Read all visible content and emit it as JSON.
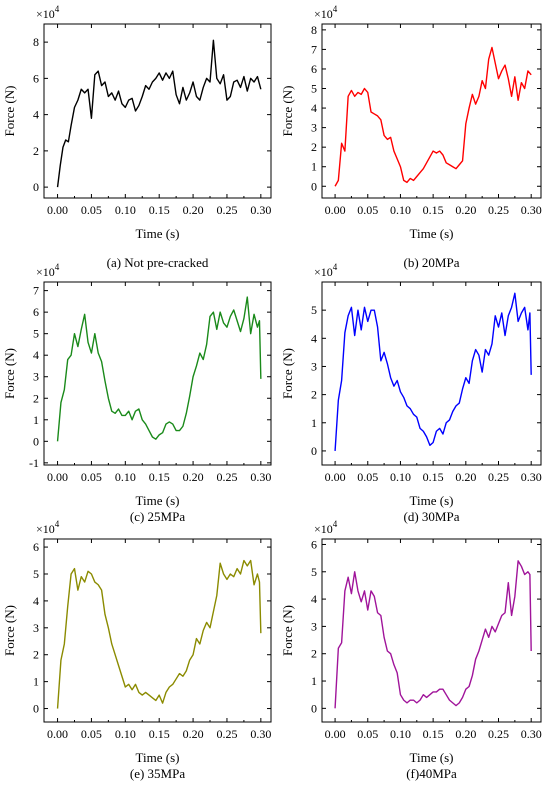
{
  "chart_data": [
    {
      "type": "line",
      "caption": "(a) Not pre-cracked",
      "xlabel": "Time (s)",
      "ylabel": "Force (N)",
      "multiplier": "×10",
      "multiplier_exp": "4",
      "xlim": [
        -0.02,
        0.315
      ],
      "ylim": [
        -0.6,
        9.0
      ],
      "xticks": [
        0.0,
        0.05,
        0.1,
        0.15,
        0.2,
        0.25,
        0.3
      ],
      "xtick_labels": [
        "0.00",
        "0.05",
        "0.10",
        "0.15",
        "0.20",
        "0.25",
        "0.30"
      ],
      "yticks": [
        0,
        2,
        4,
        6,
        8
      ],
      "ytick_labels": [
        "0",
        "2",
        "4",
        "6",
        "8"
      ],
      "series": [
        {
          "color": "#000000",
          "x": [
            0.0,
            0.004,
            0.008,
            0.012,
            0.016,
            0.02,
            0.025,
            0.03,
            0.035,
            0.04,
            0.045,
            0.05,
            0.055,
            0.06,
            0.065,
            0.07,
            0.075,
            0.08,
            0.085,
            0.09,
            0.095,
            0.1,
            0.105,
            0.11,
            0.115,
            0.12,
            0.125,
            0.13,
            0.135,
            0.14,
            0.145,
            0.15,
            0.155,
            0.16,
            0.165,
            0.17,
            0.175,
            0.18,
            0.185,
            0.19,
            0.195,
            0.2,
            0.205,
            0.21,
            0.215,
            0.22,
            0.225,
            0.23,
            0.235,
            0.24,
            0.245,
            0.25,
            0.255,
            0.26,
            0.265,
            0.27,
            0.275,
            0.28,
            0.285,
            0.29,
            0.295,
            0.3
          ],
          "y": [
            0.0,
            1.2,
            2.2,
            2.6,
            2.5,
            3.4,
            4.4,
            4.8,
            5.4,
            5.2,
            5.4,
            3.8,
            6.2,
            6.4,
            5.6,
            5.8,
            5.0,
            5.2,
            4.8,
            5.3,
            4.6,
            4.4,
            4.8,
            4.9,
            4.2,
            4.5,
            5.0,
            5.6,
            5.4,
            5.8,
            6.0,
            6.3,
            5.9,
            6.3,
            6.0,
            6.4,
            5.1,
            4.6,
            5.5,
            4.8,
            5.2,
            5.8,
            5.0,
            4.8,
            5.5,
            6.0,
            5.8,
            8.1,
            6.0,
            5.7,
            6.2,
            4.8,
            5.0,
            5.8,
            5.9,
            5.5,
            6.1,
            5.3,
            6.0,
            5.8,
            6.1,
            5.4
          ]
        }
      ]
    },
    {
      "type": "line",
      "caption": "(b) 20MPa",
      "xlabel": "Time (s)",
      "ylabel": "Force (N)",
      "multiplier": "×10",
      "multiplier_exp": "4",
      "xlim": [
        -0.02,
        0.315
      ],
      "ylim": [
        -0.6,
        8.3
      ],
      "xticks": [
        0.0,
        0.05,
        0.1,
        0.15,
        0.2,
        0.25,
        0.3
      ],
      "xtick_labels": [
        "0.00",
        "0.05",
        "0.10",
        "0.15",
        "0.20",
        "0.25",
        "0.30"
      ],
      "yticks": [
        0,
        1,
        2,
        3,
        4,
        5,
        6,
        7,
        8
      ],
      "ytick_labels": [
        "0",
        "1",
        "2",
        "3",
        "4",
        "5",
        "6",
        "7",
        "8"
      ],
      "series": [
        {
          "color": "#ff0000",
          "x": [
            0.0,
            0.005,
            0.01,
            0.015,
            0.02,
            0.025,
            0.03,
            0.035,
            0.04,
            0.045,
            0.05,
            0.055,
            0.06,
            0.065,
            0.07,
            0.075,
            0.08,
            0.085,
            0.09,
            0.095,
            0.1,
            0.105,
            0.11,
            0.115,
            0.12,
            0.125,
            0.13,
            0.135,
            0.14,
            0.145,
            0.15,
            0.155,
            0.16,
            0.165,
            0.17,
            0.175,
            0.18,
            0.185,
            0.19,
            0.195,
            0.2,
            0.205,
            0.21,
            0.215,
            0.22,
            0.225,
            0.23,
            0.235,
            0.24,
            0.245,
            0.25,
            0.255,
            0.26,
            0.265,
            0.27,
            0.275,
            0.28,
            0.285,
            0.29,
            0.295,
            0.3
          ],
          "y": [
            0.0,
            0.3,
            2.2,
            1.8,
            4.6,
            4.9,
            4.6,
            4.8,
            4.7,
            5.0,
            4.8,
            3.8,
            3.7,
            3.6,
            3.4,
            2.6,
            2.4,
            2.5,
            1.8,
            1.4,
            1.0,
            0.3,
            0.2,
            0.4,
            0.3,
            0.5,
            0.7,
            0.9,
            1.2,
            1.5,
            1.8,
            1.7,
            1.8,
            1.6,
            1.2,
            1.1,
            1.0,
            0.9,
            1.1,
            1.3,
            3.2,
            4.0,
            4.7,
            4.2,
            4.6,
            5.4,
            5.0,
            6.5,
            7.1,
            6.3,
            5.5,
            5.9,
            6.2,
            5.5,
            4.6,
            5.6,
            4.4,
            5.3,
            5.0,
            5.9,
            5.7
          ]
        }
      ]
    },
    {
      "type": "line",
      "caption": "(c) 25MPa",
      "xlabel": "Time (s)",
      "ylabel": "Force (N)",
      "multiplier": "×10",
      "multiplier_exp": "4",
      "xlim": [
        -0.02,
        0.315
      ],
      "ylim": [
        -1.1,
        7.4
      ],
      "xticks": [
        0.0,
        0.05,
        0.1,
        0.15,
        0.2,
        0.25,
        0.3
      ],
      "xtick_labels": [
        "0.00",
        "0.05",
        "0.10",
        "0.15",
        "0.20",
        "0.25",
        "0.30"
      ],
      "yticks": [
        -1,
        0,
        1,
        2,
        3,
        4,
        5,
        6,
        7
      ],
      "ytick_labels": [
        "-1",
        "0",
        "1",
        "2",
        "3",
        "4",
        "5",
        "6",
        "7"
      ],
      "series": [
        {
          "color": "#1a8a1a",
          "x": [
            0.0,
            0.005,
            0.01,
            0.015,
            0.02,
            0.025,
            0.03,
            0.035,
            0.04,
            0.045,
            0.05,
            0.055,
            0.06,
            0.065,
            0.07,
            0.075,
            0.08,
            0.085,
            0.09,
            0.095,
            0.1,
            0.105,
            0.11,
            0.115,
            0.12,
            0.125,
            0.13,
            0.135,
            0.14,
            0.145,
            0.15,
            0.155,
            0.16,
            0.165,
            0.17,
            0.175,
            0.18,
            0.185,
            0.19,
            0.195,
            0.2,
            0.205,
            0.21,
            0.215,
            0.22,
            0.225,
            0.23,
            0.235,
            0.24,
            0.245,
            0.25,
            0.255,
            0.26,
            0.265,
            0.27,
            0.275,
            0.28,
            0.285,
            0.29,
            0.295,
            0.298,
            0.3
          ],
          "y": [
            0.0,
            1.8,
            2.4,
            3.8,
            4.0,
            5.0,
            4.4,
            5.2,
            5.9,
            4.6,
            4.1,
            5.0,
            4.1,
            3.7,
            2.8,
            2.0,
            1.4,
            1.3,
            1.5,
            1.2,
            1.2,
            1.4,
            1.0,
            1.4,
            1.5,
            1.0,
            0.8,
            0.5,
            0.2,
            0.1,
            0.3,
            0.4,
            0.8,
            0.9,
            0.8,
            0.5,
            0.5,
            0.7,
            1.3,
            2.1,
            3.0,
            3.5,
            4.1,
            3.8,
            4.5,
            5.8,
            6.0,
            5.2,
            6.0,
            5.5,
            5.3,
            5.8,
            6.1,
            5.6,
            5.1,
            5.7,
            6.7,
            5.0,
            5.9,
            5.3,
            5.6,
            2.9
          ]
        }
      ]
    },
    {
      "type": "line",
      "caption": "(d) 30MPa",
      "xlabel": "Time (s)",
      "ylabel": "Force (N)",
      "multiplier": "×10",
      "multiplier_exp": "4",
      "xlim": [
        -0.02,
        0.315
      ],
      "ylim": [
        -0.5,
        6.0
      ],
      "xticks": [
        0.0,
        0.05,
        0.1,
        0.15,
        0.2,
        0.25,
        0.3
      ],
      "xtick_labels": [
        "0.00",
        "0.05",
        "0.10",
        "0.15",
        "0.20",
        "0.25",
        "0.30"
      ],
      "yticks": [
        0,
        1,
        2,
        3,
        4,
        5
      ],
      "ytick_labels": [
        "0",
        "1",
        "2",
        "3",
        "4",
        "5"
      ],
      "series": [
        {
          "color": "#0000ff",
          "x": [
            0.0,
            0.005,
            0.01,
            0.015,
            0.02,
            0.025,
            0.03,
            0.035,
            0.04,
            0.045,
            0.05,
            0.055,
            0.06,
            0.065,
            0.07,
            0.075,
            0.08,
            0.085,
            0.09,
            0.095,
            0.1,
            0.105,
            0.11,
            0.115,
            0.12,
            0.125,
            0.13,
            0.135,
            0.14,
            0.145,
            0.15,
            0.155,
            0.16,
            0.165,
            0.17,
            0.175,
            0.18,
            0.185,
            0.19,
            0.195,
            0.2,
            0.205,
            0.21,
            0.215,
            0.22,
            0.225,
            0.23,
            0.235,
            0.24,
            0.245,
            0.25,
            0.255,
            0.26,
            0.265,
            0.27,
            0.275,
            0.28,
            0.285,
            0.29,
            0.295,
            0.298,
            0.3
          ],
          "y": [
            0.0,
            1.8,
            2.5,
            4.2,
            4.8,
            5.1,
            4.1,
            5.0,
            4.3,
            5.1,
            4.6,
            5.0,
            5.0,
            4.4,
            3.2,
            3.5,
            3.1,
            2.6,
            2.3,
            2.5,
            2.1,
            1.9,
            1.6,
            1.5,
            1.3,
            1.2,
            0.8,
            0.7,
            0.5,
            0.2,
            0.3,
            0.7,
            0.8,
            0.6,
            1.0,
            1.1,
            1.4,
            1.6,
            1.7,
            2.2,
            2.6,
            2.4,
            3.2,
            3.6,
            3.4,
            2.8,
            3.6,
            3.4,
            3.8,
            4.8,
            4.4,
            4.9,
            4.1,
            4.8,
            5.1,
            5.6,
            4.6,
            4.9,
            5.1,
            4.3,
            4.9,
            2.7
          ]
        }
      ]
    },
    {
      "type": "line",
      "caption": "(e) 35MPa",
      "xlabel": "Time (s)",
      "ylabel": "Force (N)",
      "multiplier": "×10",
      "multiplier_exp": "4",
      "xlim": [
        -0.02,
        0.315
      ],
      "ylim": [
        -0.5,
        6.3
      ],
      "xticks": [
        0.0,
        0.05,
        0.1,
        0.15,
        0.2,
        0.25,
        0.3
      ],
      "xtick_labels": [
        "0.00",
        "0.05",
        "0.10",
        "0.15",
        "0.20",
        "0.25",
        "0.30"
      ],
      "yticks": [
        0,
        1,
        2,
        3,
        4,
        5,
        6
      ],
      "ytick_labels": [
        "0",
        "1",
        "2",
        "3",
        "4",
        "5",
        "6"
      ],
      "series": [
        {
          "color": "#8b8b00",
          "x": [
            0.0,
            0.005,
            0.01,
            0.015,
            0.02,
            0.025,
            0.03,
            0.035,
            0.04,
            0.045,
            0.05,
            0.055,
            0.06,
            0.065,
            0.07,
            0.075,
            0.08,
            0.085,
            0.09,
            0.095,
            0.1,
            0.105,
            0.11,
            0.115,
            0.12,
            0.125,
            0.13,
            0.135,
            0.14,
            0.145,
            0.15,
            0.155,
            0.16,
            0.165,
            0.17,
            0.175,
            0.18,
            0.185,
            0.19,
            0.195,
            0.2,
            0.205,
            0.21,
            0.215,
            0.22,
            0.225,
            0.23,
            0.235,
            0.24,
            0.245,
            0.25,
            0.255,
            0.26,
            0.265,
            0.27,
            0.275,
            0.28,
            0.285,
            0.29,
            0.295,
            0.298,
            0.3
          ],
          "y": [
            0.0,
            1.8,
            2.4,
            3.8,
            5.0,
            5.2,
            4.4,
            4.9,
            4.7,
            5.1,
            5.0,
            4.7,
            4.6,
            4.4,
            3.5,
            3.0,
            2.4,
            2.0,
            1.6,
            1.2,
            0.8,
            0.9,
            0.7,
            0.9,
            0.6,
            0.5,
            0.6,
            0.5,
            0.4,
            0.3,
            0.5,
            0.2,
            0.6,
            0.8,
            0.9,
            1.1,
            1.3,
            1.2,
            1.4,
            1.8,
            2.0,
            2.6,
            2.4,
            2.9,
            3.2,
            3.0,
            3.6,
            4.2,
            5.4,
            5.0,
            4.8,
            5.0,
            4.9,
            5.2,
            5.0,
            5.5,
            5.3,
            5.5,
            4.6,
            5.0,
            4.7,
            2.8
          ]
        }
      ]
    },
    {
      "type": "line",
      "caption": "(f)40MPa",
      "xlabel": "Time (s)",
      "ylabel": "Force (N)",
      "multiplier": "×10",
      "multiplier_exp": "4",
      "xlim": [
        -0.02,
        0.315
      ],
      "ylim": [
        -0.5,
        6.2
      ],
      "xticks": [
        0.0,
        0.05,
        0.1,
        0.15,
        0.2,
        0.25,
        0.3
      ],
      "xtick_labels": [
        "0.00",
        "0.05",
        "0.10",
        "0.15",
        "0.20",
        "0.25",
        "0.30"
      ],
      "yticks": [
        0,
        1,
        2,
        3,
        4,
        5,
        6
      ],
      "ytick_labels": [
        "0",
        "1",
        "2",
        "3",
        "4",
        "5",
        "6"
      ],
      "series": [
        {
          "color": "#a0149a",
          "x": [
            0.0,
            0.005,
            0.01,
            0.015,
            0.02,
            0.025,
            0.03,
            0.035,
            0.04,
            0.045,
            0.05,
            0.055,
            0.06,
            0.065,
            0.07,
            0.075,
            0.08,
            0.085,
            0.09,
            0.095,
            0.1,
            0.105,
            0.11,
            0.115,
            0.12,
            0.125,
            0.13,
            0.135,
            0.14,
            0.145,
            0.15,
            0.155,
            0.16,
            0.165,
            0.17,
            0.175,
            0.18,
            0.185,
            0.19,
            0.195,
            0.2,
            0.205,
            0.21,
            0.215,
            0.22,
            0.225,
            0.23,
            0.235,
            0.24,
            0.245,
            0.25,
            0.255,
            0.26,
            0.265,
            0.27,
            0.275,
            0.28,
            0.285,
            0.29,
            0.295,
            0.298,
            0.3
          ],
          "y": [
            0.0,
            2.2,
            2.4,
            4.3,
            4.8,
            4.2,
            5.0,
            4.3,
            3.9,
            4.3,
            3.6,
            4.3,
            4.1,
            3.5,
            3.4,
            2.6,
            2.1,
            2.0,
            1.6,
            1.3,
            0.5,
            0.3,
            0.2,
            0.3,
            0.3,
            0.2,
            0.3,
            0.5,
            0.4,
            0.5,
            0.6,
            0.6,
            0.7,
            0.7,
            0.5,
            0.3,
            0.2,
            0.1,
            0.2,
            0.4,
            0.7,
            0.8,
            1.2,
            1.8,
            2.1,
            2.5,
            2.9,
            2.6,
            3.0,
            2.8,
            3.1,
            3.4,
            3.5,
            4.6,
            3.4,
            4.1,
            5.4,
            5.2,
            4.9,
            5.0,
            4.9,
            2.1
          ]
        }
      ]
    }
  ]
}
